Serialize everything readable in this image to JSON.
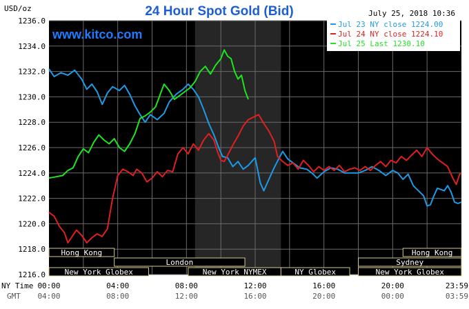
{
  "chart_data": {
    "type": "line",
    "title": "24 Hour Spot Gold (Bid)",
    "ylabel": "USD/oz",
    "timestamp": "July 25, 2018 10:36",
    "website": "www.kitco.com",
    "ylim": [
      1216,
      1236
    ],
    "y_ticks": [
      "1236.0",
      "1234.0",
      "1232.0",
      "1230.0",
      "1228.0",
      "1226.0",
      "1224.0",
      "1222.0",
      "1220.0",
      "1218.0",
      "1216.0"
    ],
    "xlim": [
      0,
      24
    ],
    "x_ticks_ny": [
      {
        "h": 0,
        "label": "00:00"
      },
      {
        "h": 4,
        "label": "04:00"
      },
      {
        "h": 8,
        "label": "08:00"
      },
      {
        "h": 12,
        "label": "12:00"
      },
      {
        "h": 16,
        "label": "16:00"
      },
      {
        "h": 20,
        "label": "20:00"
      },
      {
        "h": 24,
        "label": "23:59"
      }
    ],
    "x_ticks_gmt": [
      "04:00",
      "08:00",
      "12:00",
      "16:00",
      "20:00",
      "00:00",
      "03:59"
    ],
    "x_axis_label_ny": "NY Time",
    "x_axis_label_gmt": "GMT",
    "shaded_range": [
      8.5,
      13.5
    ],
    "series": [
      {
        "name": "Jul 23 NY close 1224.00",
        "color": "#1e9be6",
        "points": [
          [
            0,
            1232.2
          ],
          [
            0.3,
            1231.6
          ],
          [
            0.7,
            1231.9
          ],
          [
            1.1,
            1231.7
          ],
          [
            1.5,
            1232.1
          ],
          [
            1.9,
            1231.4
          ],
          [
            2.2,
            1230.6
          ],
          [
            2.5,
            1231.0
          ],
          [
            2.8,
            1230.4
          ],
          [
            3.1,
            1229.4
          ],
          [
            3.4,
            1230.3
          ],
          [
            3.7,
            1230.8
          ],
          [
            4.1,
            1230.5
          ],
          [
            4.4,
            1230.9
          ],
          [
            4.7,
            1230.2
          ],
          [
            5.0,
            1229.3
          ],
          [
            5.3,
            1228.6
          ],
          [
            5.6,
            1228.0
          ],
          [
            5.9,
            1228.6
          ],
          [
            6.3,
            1228.2
          ],
          [
            6.7,
            1228.7
          ],
          [
            7.0,
            1229.6
          ],
          [
            7.4,
            1230.2
          ],
          [
            7.8,
            1230.6
          ],
          [
            8.1,
            1231.0
          ],
          [
            8.4,
            1230.6
          ],
          [
            8.7,
            1230.0
          ],
          [
            9.0,
            1229.0
          ],
          [
            9.3,
            1227.9
          ],
          [
            9.6,
            1227.0
          ],
          [
            9.9,
            1225.9
          ],
          [
            10.1,
            1225.3
          ],
          [
            10.4,
            1225.2
          ],
          [
            10.7,
            1224.5
          ],
          [
            11.0,
            1224.9
          ],
          [
            11.3,
            1224.3
          ],
          [
            11.6,
            1224.6
          ],
          [
            11.8,
            1224.9
          ],
          [
            12.0,
            1225.2
          ],
          [
            12.3,
            1223.2
          ],
          [
            12.5,
            1222.6
          ],
          [
            12.8,
            1223.5
          ],
          [
            13.1,
            1224.4
          ],
          [
            13.4,
            1225.2
          ],
          [
            13.6,
            1225.7
          ],
          [
            13.9,
            1225.1
          ],
          [
            14.2,
            1224.8
          ],
          [
            14.6,
            1224.4
          ],
          [
            15.0,
            1224.3
          ],
          [
            15.3,
            1224.0
          ],
          [
            15.6,
            1223.6
          ],
          [
            16.0,
            1224.1
          ],
          [
            16.4,
            1224.4
          ],
          [
            16.8,
            1224.3
          ],
          [
            17.2,
            1224.0
          ],
          [
            17.6,
            1224.0
          ],
          [
            18.0,
            1224.0
          ],
          [
            18.4,
            1224.2
          ],
          [
            18.8,
            1224.5
          ],
          [
            19.2,
            1224.2
          ],
          [
            19.6,
            1223.8
          ],
          [
            20.0,
            1224.2
          ],
          [
            20.3,
            1224.0
          ],
          [
            20.6,
            1223.5
          ],
          [
            20.9,
            1223.9
          ],
          [
            21.2,
            1223.0
          ],
          [
            21.5,
            1222.6
          ],
          [
            21.8,
            1222.2
          ],
          [
            22.0,
            1221.4
          ],
          [
            22.2,
            1221.5
          ],
          [
            22.4,
            1222.2
          ],
          [
            22.6,
            1222.8
          ],
          [
            22.8,
            1222.7
          ],
          [
            23.0,
            1222.6
          ],
          [
            23.2,
            1223.0
          ],
          [
            23.4,
            1222.5
          ],
          [
            23.6,
            1221.7
          ],
          [
            23.8,
            1221.6
          ],
          [
            24.0,
            1221.7
          ]
        ]
      },
      {
        "name": "Jul 24 NY close 1224.10",
        "color": "#e02020",
        "points": [
          [
            0,
            1220.9
          ],
          [
            0.3,
            1220.6
          ],
          [
            0.6,
            1219.8
          ],
          [
            0.9,
            1219.3
          ],
          [
            1.1,
            1218.5
          ],
          [
            1.3,
            1218.9
          ],
          [
            1.6,
            1219.5
          ],
          [
            1.9,
            1219.1
          ],
          [
            2.2,
            1218.5
          ],
          [
            2.5,
            1218.9
          ],
          [
            2.8,
            1219.2
          ],
          [
            3.1,
            1219.0
          ],
          [
            3.4,
            1219.6
          ],
          [
            3.7,
            1222.0
          ],
          [
            4.0,
            1223.8
          ],
          [
            4.3,
            1224.3
          ],
          [
            4.6,
            1224.1
          ],
          [
            4.9,
            1223.8
          ],
          [
            5.1,
            1224.3
          ],
          [
            5.4,
            1224.0
          ],
          [
            5.7,
            1223.3
          ],
          [
            6.0,
            1223.6
          ],
          [
            6.3,
            1224.1
          ],
          [
            6.6,
            1223.7
          ],
          [
            6.9,
            1224.2
          ],
          [
            7.2,
            1224.1
          ],
          [
            7.5,
            1225.5
          ],
          [
            7.8,
            1226.0
          ],
          [
            8.1,
            1225.5
          ],
          [
            8.4,
            1226.3
          ],
          [
            8.7,
            1225.8
          ],
          [
            9.0,
            1226.6
          ],
          [
            9.3,
            1227.1
          ],
          [
            9.6,
            1226.6
          ],
          [
            9.8,
            1225.7
          ],
          [
            10.0,
            1225.0
          ],
          [
            10.2,
            1224.9
          ],
          [
            10.4,
            1225.4
          ],
          [
            10.7,
            1226.2
          ],
          [
            11.0,
            1226.9
          ],
          [
            11.3,
            1227.7
          ],
          [
            11.6,
            1228.2
          ],
          [
            11.9,
            1228.4
          ],
          [
            12.2,
            1228.6
          ],
          [
            12.5,
            1227.9
          ],
          [
            12.8,
            1227.3
          ],
          [
            13.1,
            1226.5
          ],
          [
            13.3,
            1225.3
          ],
          [
            13.6,
            1224.9
          ],
          [
            13.9,
            1224.6
          ],
          [
            14.2,
            1224.8
          ],
          [
            14.5,
            1224.3
          ],
          [
            14.8,
            1225.0
          ],
          [
            15.1,
            1224.6
          ],
          [
            15.4,
            1224.1
          ],
          [
            15.7,
            1224.5
          ],
          [
            16.0,
            1224.2
          ],
          [
            16.3,
            1224.5
          ],
          [
            16.6,
            1224.2
          ],
          [
            16.9,
            1224.6
          ],
          [
            17.2,
            1224.1
          ],
          [
            17.5,
            1224.3
          ],
          [
            17.8,
            1224.4
          ],
          [
            18.1,
            1224.2
          ],
          [
            18.4,
            1224.5
          ],
          [
            18.7,
            1224.2
          ],
          [
            19.0,
            1224.6
          ],
          [
            19.3,
            1224.9
          ],
          [
            19.6,
            1224.5
          ],
          [
            19.9,
            1225.0
          ],
          [
            20.2,
            1224.8
          ],
          [
            20.5,
            1225.3
          ],
          [
            20.8,
            1225.0
          ],
          [
            21.1,
            1225.4
          ],
          [
            21.4,
            1225.8
          ],
          [
            21.7,
            1225.3
          ],
          [
            22.0,
            1226.0
          ],
          [
            22.3,
            1225.5
          ],
          [
            22.6,
            1225.1
          ],
          [
            22.9,
            1224.8
          ],
          [
            23.2,
            1224.5
          ],
          [
            23.5,
            1223.6
          ],
          [
            23.7,
            1223.1
          ],
          [
            23.9,
            1223.9
          ],
          [
            24.0,
            1224.0
          ]
        ]
      },
      {
        "name": "Jul 25 Last 1230.10",
        "color": "#1ee61e",
        "points": [
          [
            0,
            1223.6
          ],
          [
            0.4,
            1223.7
          ],
          [
            0.8,
            1223.8
          ],
          [
            1.1,
            1224.2
          ],
          [
            1.4,
            1224.4
          ],
          [
            1.7,
            1225.3
          ],
          [
            2.0,
            1225.9
          ],
          [
            2.3,
            1225.6
          ],
          [
            2.6,
            1226.4
          ],
          [
            2.9,
            1227.0
          ],
          [
            3.2,
            1226.6
          ],
          [
            3.5,
            1226.3
          ],
          [
            3.8,
            1226.7
          ],
          [
            4.1,
            1226.0
          ],
          [
            4.4,
            1225.7
          ],
          [
            4.7,
            1226.3
          ],
          [
            5.0,
            1227.1
          ],
          [
            5.3,
            1228.3
          ],
          [
            5.6,
            1228.5
          ],
          [
            5.9,
            1228.8
          ],
          [
            6.2,
            1229.2
          ],
          [
            6.5,
            1230.3
          ],
          [
            6.7,
            1231.0
          ],
          [
            7.0,
            1230.5
          ],
          [
            7.3,
            1229.8
          ],
          [
            7.6,
            1230.1
          ],
          [
            7.9,
            1230.4
          ],
          [
            8.2,
            1230.7
          ],
          [
            8.5,
            1231.2
          ],
          [
            8.8,
            1232.0
          ],
          [
            9.1,
            1232.4
          ],
          [
            9.4,
            1231.8
          ],
          [
            9.7,
            1232.5
          ],
          [
            10.0,
            1233.0
          ],
          [
            10.2,
            1233.7
          ],
          [
            10.4,
            1233.2
          ],
          [
            10.6,
            1233.0
          ],
          [
            10.8,
            1232.0
          ],
          [
            11.0,
            1231.4
          ],
          [
            11.2,
            1231.7
          ],
          [
            11.4,
            1230.5
          ],
          [
            11.6,
            1229.8
          ]
        ]
      }
    ],
    "sessions": [
      {
        "name": "Hong Kong",
        "start": 0,
        "end": 3.8,
        "row": 1
      },
      {
        "name": "London",
        "start": 3.8,
        "end": 11.4,
        "row": 2
      },
      {
        "name": "New York Globex",
        "start": 0,
        "end": 5.8,
        "row": 3
      },
      {
        "name": "New York NYMEX",
        "start": 8.1,
        "end": 13.5,
        "row": 3
      },
      {
        "name": "NY Globex",
        "start": 13.5,
        "end": 17.5,
        "row": 3
      },
      {
        "name": "New York Globex",
        "start": 18.0,
        "end": 24,
        "row": 3
      },
      {
        "name": "Hong Kong",
        "start": 20.6,
        "end": 24,
        "row": 1
      },
      {
        "name": "Sydney",
        "start": 18.0,
        "end": 24,
        "row": 2
      }
    ]
  }
}
